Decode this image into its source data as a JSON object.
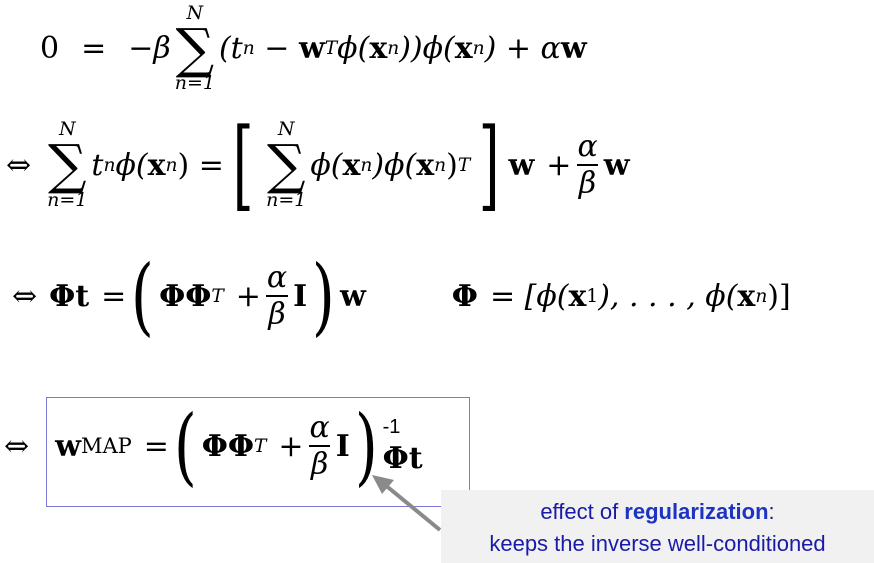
{
  "equations": {
    "eq1": {
      "lhs": "0",
      "eq": "=",
      "minus_beta": "−β",
      "sum_upper": "N",
      "sum_lower": "n=1",
      "sum_sym": "∑",
      "body_open": "(t",
      "body_sub_n": "n",
      "body_minus": " − ",
      "w_bold": "w",
      "w_sup": "T",
      "phi_x": "ϕ(",
      "x_bold": "x",
      "x_sub": "n",
      "close_a": "))ϕ(",
      "x_bold2": "x",
      "x_sub2": "n",
      "close_b": ") + α",
      "w_bold2": "w"
    },
    "eq2": {
      "iff": "⇔",
      "sum_upper": "N",
      "sum_lower": "n=1",
      "sum_sym": "∑",
      "t": "t",
      "t_sub": "n",
      "phi_open": "ϕ(",
      "x_bold": "x",
      "x_sub": "n",
      "close": ") =",
      "lbracket": "[",
      "sum2_upper": "N",
      "sum2_lower": "n=1",
      "sum2_sym": "∑",
      "inner_a": "ϕ(",
      "x_bold2": "x",
      "x_sub2": "n",
      "inner_b": ")ϕ(",
      "x_bold3": "x",
      "x_sub3": "n",
      "inner_c": ")",
      "inner_sup": "T",
      "rbracket": "]",
      "w_bold": "w",
      "plus": "+",
      "frac_num": "α",
      "frac_den": "β",
      "w_bold2": "w"
    },
    "eq3": {
      "iff": "⇔",
      "Phi_t": "Φt",
      "eq": "=",
      "lparen": "(",
      "PhiPhi": "ΦΦ",
      "sup_T": "T",
      "plus": "+",
      "frac_num": "α",
      "frac_den": "β",
      "I": "I",
      "rparen": ")",
      "w": "w",
      "def_Phi": "Φ",
      "def_eq": "= [ϕ(",
      "def_x1": "x",
      "def_x1_sub": "1",
      "def_mid": "), . . . , ϕ(",
      "def_xn": "x",
      "def_xn_sub": "n",
      "def_close": ")]"
    },
    "eq4": {
      "iff": "⇔",
      "w": "w",
      "w_sub": "MAP",
      "eq": "=",
      "lparen": "(",
      "PhiPhi": "ΦΦ",
      "sup_T": "T",
      "plus": "+",
      "frac_num": "α",
      "frac_den": "β",
      "I": "I",
      "rparen": ")",
      "inv": "-1",
      "Phi_t": "Φt"
    }
  },
  "note": {
    "line1_prefix": "effect of ",
    "line1_bold": "regularization",
    "line1_suffix": ":",
    "line2": "keeps the inverse well-conditioned"
  },
  "colors": {
    "box_border": "#7b78d6",
    "note_text": "#1a1aa8",
    "note_bg": "#f1f1f1",
    "arrow": "#8a8a8a"
  }
}
